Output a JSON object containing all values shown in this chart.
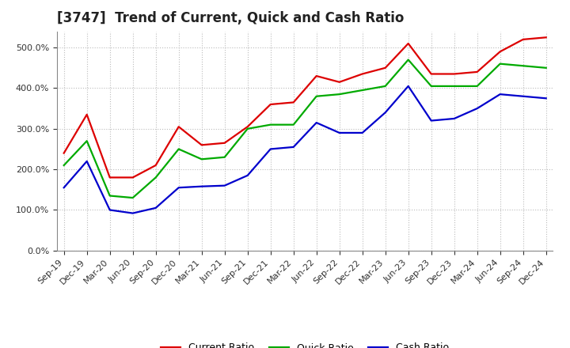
{
  "title": "[3747]  Trend of Current, Quick and Cash Ratio",
  "x_labels": [
    "Sep-19",
    "Dec-19",
    "Mar-20",
    "Jun-20",
    "Sep-20",
    "Dec-20",
    "Mar-21",
    "Jun-21",
    "Sep-21",
    "Dec-21",
    "Mar-22",
    "Jun-22",
    "Sep-22",
    "Dec-22",
    "Mar-23",
    "Jun-23",
    "Sep-23",
    "Dec-23",
    "Mar-24",
    "Jun-24",
    "Sep-24",
    "Dec-24"
  ],
  "current_ratio": [
    240,
    335,
    180,
    180,
    210,
    305,
    260,
    265,
    305,
    360,
    365,
    430,
    415,
    435,
    450,
    510,
    435,
    435,
    440,
    490,
    520,
    525
  ],
  "quick_ratio": [
    210,
    270,
    135,
    130,
    180,
    250,
    225,
    230,
    300,
    310,
    310,
    380,
    385,
    395,
    405,
    470,
    405,
    405,
    405,
    460,
    455,
    450
  ],
  "cash_ratio": [
    155,
    220,
    100,
    92,
    105,
    155,
    158,
    160,
    185,
    250,
    255,
    315,
    290,
    290,
    340,
    405,
    320,
    325,
    350,
    385,
    380,
    375
  ],
  "ylim": [
    0,
    540
  ],
  "yticks": [
    0,
    100,
    200,
    300,
    400,
    500
  ],
  "background_color": "#ffffff",
  "plot_bg_color": "#ffffff",
  "current_color": "#dd0000",
  "quick_color": "#00aa00",
  "cash_color": "#0000cc",
  "line_width": 1.6,
  "grid_color": "#bbbbbb",
  "title_fontsize": 12,
  "legend_fontsize": 9,
  "tick_fontsize": 8
}
